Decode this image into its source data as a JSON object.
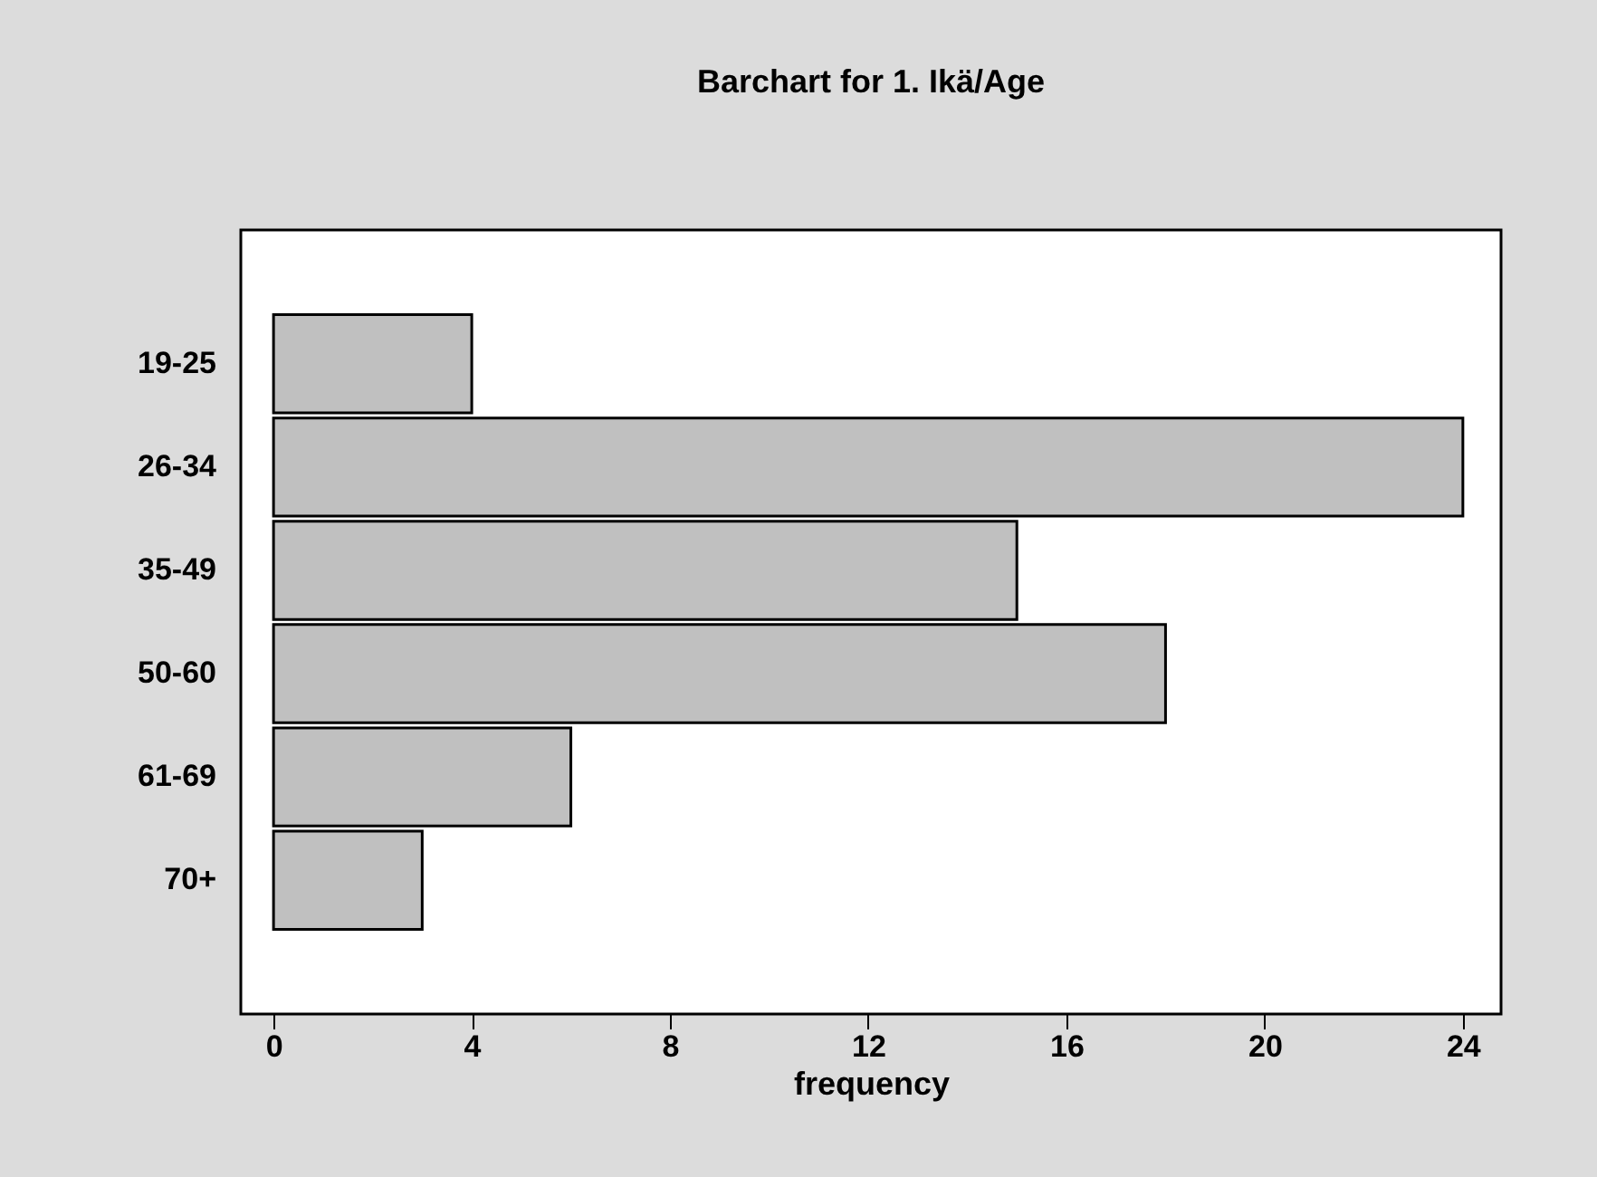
{
  "chart_data": {
    "type": "bar",
    "orientation": "horizontal",
    "title": "Barchart for 1. Ikä/Age",
    "xlabel": "frequency",
    "categories": [
      "19-25",
      "26-34",
      "35-49",
      "50-60",
      "61-69",
      "70+"
    ],
    "values": [
      4,
      24,
      15,
      18,
      6,
      3
    ],
    "color": "#c0c0c0",
    "xlim": [
      -0.66,
      24.77
    ],
    "xticks": [
      0,
      4,
      8,
      12,
      16,
      20,
      24
    ],
    "grid": false
  }
}
